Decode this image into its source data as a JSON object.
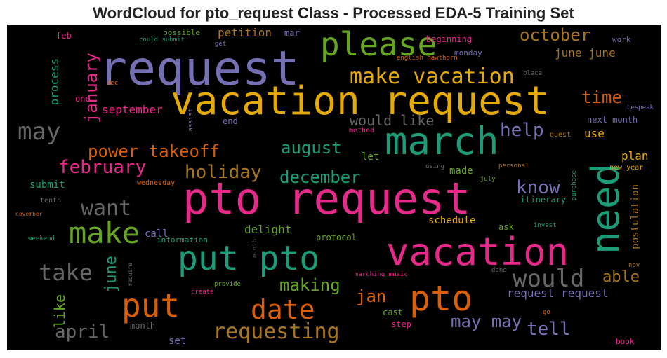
{
  "chart_data": {
    "type": "wordcloud",
    "title": "WordCloud for pto_request Class - Processed EDA-5 Training Set",
    "words": [
      {
        "text": "request",
        "color": "#7570b3"
      },
      {
        "text": "vacation request",
        "color": "#e6ab02"
      },
      {
        "text": "pto request",
        "color": "#e7298a"
      },
      {
        "text": "march",
        "color": "#1b9e77"
      },
      {
        "text": "please",
        "color": "#66a61e"
      },
      {
        "text": "vacation",
        "color": "#e7298a"
      },
      {
        "text": "put pto",
        "color": "#1b9e77"
      },
      {
        "text": "pto",
        "color": "#d95f02"
      },
      {
        "text": "put",
        "color": "#d95f02"
      },
      {
        "text": "need",
        "color": "#1b9e77"
      },
      {
        "text": "make",
        "color": "#66a61e"
      },
      {
        "text": "make vacation",
        "color": "#e6ab02"
      },
      {
        "text": "date",
        "color": "#d95f02"
      },
      {
        "text": "may",
        "color": "#666666"
      },
      {
        "text": "would",
        "color": "#666666"
      },
      {
        "text": "want",
        "color": "#666666"
      },
      {
        "text": "take",
        "color": "#666666"
      },
      {
        "text": "requesting",
        "color": "#a6761d"
      },
      {
        "text": "power takeoff",
        "color": "#d95f02"
      },
      {
        "text": "february",
        "color": "#e7298a"
      },
      {
        "text": "holiday",
        "color": "#a6761d"
      },
      {
        "text": "december",
        "color": "#1b9e77"
      },
      {
        "text": "october",
        "color": "#a6761d"
      },
      {
        "text": "help",
        "color": "#7570b3"
      },
      {
        "text": "august",
        "color": "#1b9e77"
      },
      {
        "text": "know",
        "color": "#7570b3"
      },
      {
        "text": "april",
        "color": "#666666"
      },
      {
        "text": "tell",
        "color": "#7570b3"
      },
      {
        "text": "may may",
        "color": "#7570b3"
      },
      {
        "text": "making",
        "color": "#66a61e"
      },
      {
        "text": "time",
        "color": "#d95f02"
      },
      {
        "text": "january",
        "color": "#e7298a"
      },
      {
        "text": "would like",
        "color": "#666666"
      },
      {
        "text": "jan",
        "color": "#d95f02"
      },
      {
        "text": "able",
        "color": "#a6761d"
      },
      {
        "text": "june june",
        "color": "#a6761d"
      },
      {
        "text": "june",
        "color": "#1b9e77"
      },
      {
        "text": "like",
        "color": "#66a61e"
      },
      {
        "text": "request request",
        "color": "#7570b3"
      },
      {
        "text": "september",
        "color": "#e7298a"
      },
      {
        "text": "petition",
        "color": "#a6761d"
      },
      {
        "text": "delight",
        "color": "#66a61e"
      },
      {
        "text": "process",
        "color": "#1b9e77"
      },
      {
        "text": "plan",
        "color": "#e6ab02"
      },
      {
        "text": "submit",
        "color": "#1b9e77"
      },
      {
        "text": "use",
        "color": "#e6ab02"
      },
      {
        "text": "postulation",
        "color": "#a6761d"
      },
      {
        "text": "mar",
        "color": "#7570b3"
      },
      {
        "text": "feb",
        "color": "#e7298a"
      },
      {
        "text": "beginning",
        "color": "#e7298a"
      },
      {
        "text": "let",
        "color": "#66a61e"
      },
      {
        "text": "made",
        "color": "#66a61e"
      },
      {
        "text": "schedule",
        "color": "#e6ab02"
      },
      {
        "text": "call",
        "color": "#7570b3"
      },
      {
        "text": "month",
        "color": "#666666"
      },
      {
        "text": "set",
        "color": "#7570b3"
      },
      {
        "text": "step",
        "color": "#e7298a"
      },
      {
        "text": "cast",
        "color": "#66a61e"
      },
      {
        "text": "one",
        "color": "#e7298a"
      },
      {
        "text": "end",
        "color": "#7570b3"
      },
      {
        "text": "ask",
        "color": "#66a61e"
      },
      {
        "text": "itinerary",
        "color": "#1b9e77"
      },
      {
        "text": "information",
        "color": "#1b9e77"
      },
      {
        "text": "protocol",
        "color": "#66a61e"
      },
      {
        "text": "monday",
        "color": "#7570b3"
      },
      {
        "text": "next month",
        "color": "#7570b3"
      },
      {
        "text": "possible",
        "color": "#66a61e"
      },
      {
        "text": "work",
        "color": "#7570b3"
      },
      {
        "text": "could submit",
        "color": "#1b9e77"
      },
      {
        "text": "get",
        "color": "#7570b3"
      },
      {
        "text": "english hawthorn",
        "color": "#d95f02"
      },
      {
        "text": "dec",
        "color": "#d95f02"
      },
      {
        "text": "assist",
        "color": "#7570b3"
      },
      {
        "text": "method",
        "color": "#e7298a"
      },
      {
        "text": "quest",
        "color": "#a6761d"
      },
      {
        "text": "place",
        "color": "#666666"
      },
      {
        "text": "bespeak",
        "color": "#7570b3"
      },
      {
        "text": "using",
        "color": "#666666"
      },
      {
        "text": "personal",
        "color": "#a6761d"
      },
      {
        "text": "new year",
        "color": "#e6ab02"
      },
      {
        "text": "july",
        "color": "#66a61e"
      },
      {
        "text": "purchase",
        "color": "#1b9e77"
      },
      {
        "text": "wednesday",
        "color": "#d95f02"
      },
      {
        "text": "tenth",
        "color": "#666666"
      },
      {
        "text": "november",
        "color": "#d95f02"
      },
      {
        "text": "weekend",
        "color": "#1b9e77"
      },
      {
        "text": "invest",
        "color": "#1b9e77"
      },
      {
        "text": "ninth",
        "color": "#666666"
      },
      {
        "text": "require",
        "color": "#666666"
      },
      {
        "text": "provide",
        "color": "#66a61e"
      },
      {
        "text": "create",
        "color": "#e7298a"
      },
      {
        "text": "marching music",
        "color": "#e7298a"
      },
      {
        "text": "done",
        "color": "#666666"
      },
      {
        "text": "nov",
        "color": "#a6761d"
      },
      {
        "text": "go",
        "color": "#d95f02"
      },
      {
        "text": "book",
        "color": "#e7298a"
      }
    ]
  }
}
